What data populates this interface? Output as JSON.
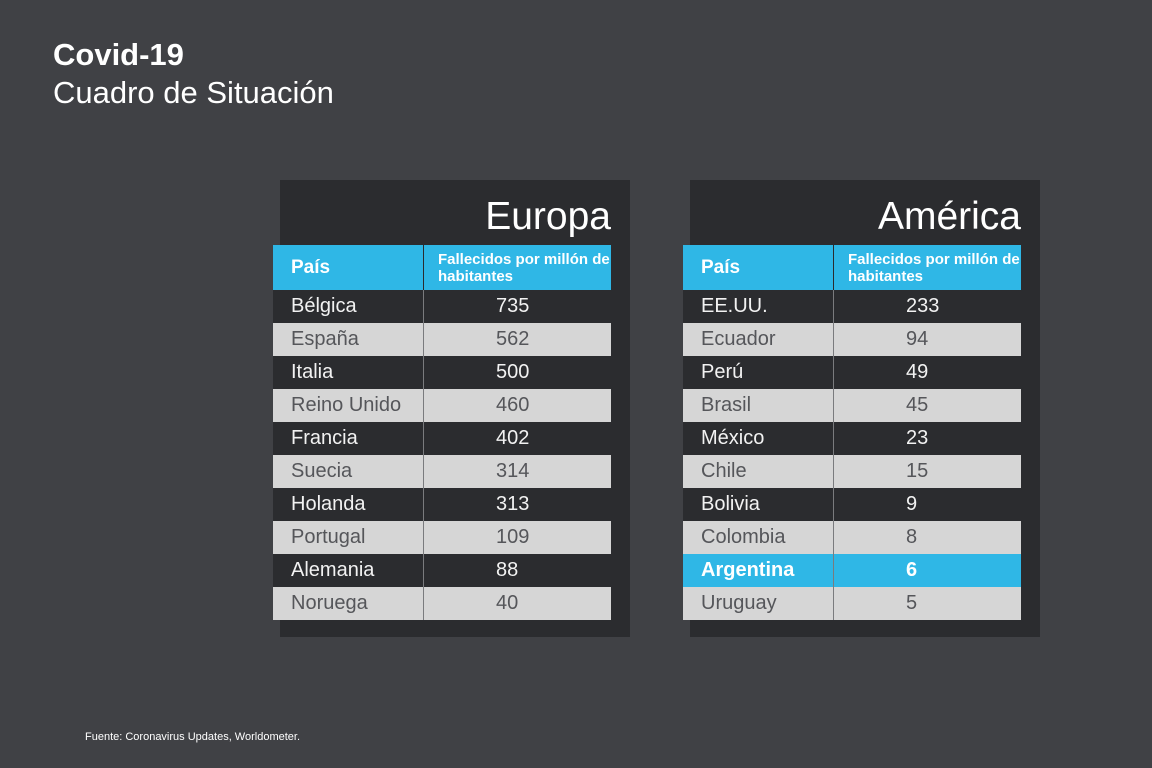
{
  "header": {
    "title": "Covid-19",
    "subtitle": "Cuadro de Situación"
  },
  "chart_data": [
    {
      "type": "table",
      "title": "Europa",
      "columns": [
        "País",
        "Fallecidos por millón de habitantes"
      ],
      "rows": [
        [
          "Bélgica",
          735
        ],
        [
          "España",
          562
        ],
        [
          "Italia",
          500
        ],
        [
          "Reino Unido",
          460
        ],
        [
          "Francia",
          402
        ],
        [
          "Suecia",
          314
        ],
        [
          "Holanda",
          313
        ],
        [
          "Portugal",
          109
        ],
        [
          "Alemania",
          88
        ],
        [
          "Noruega",
          40
        ]
      ],
      "highlight_row": -1
    },
    {
      "type": "table",
      "title": "América",
      "columns": [
        "País",
        "Fallecidos por millón de habitantes"
      ],
      "rows": [
        [
          "EE.UU.",
          233
        ],
        [
          "Ecuador",
          94
        ],
        [
          "Perú",
          49
        ],
        [
          "Brasil",
          45
        ],
        [
          "México",
          23
        ],
        [
          "Chile",
          15
        ],
        [
          "Bolivia",
          9
        ],
        [
          "Colombia",
          8
        ],
        [
          "Argentina",
          6
        ],
        [
          "Uruguay",
          5
        ]
      ],
      "highlight_row": 8
    }
  ],
  "colors": {
    "background": "#404145",
    "panel": "#2b2c2f",
    "accent": "#2fb7e6",
    "light_row": "#d6d6d6"
  },
  "footer": {
    "source": "Fuente: Coronavirus Updates, Worldometer."
  }
}
